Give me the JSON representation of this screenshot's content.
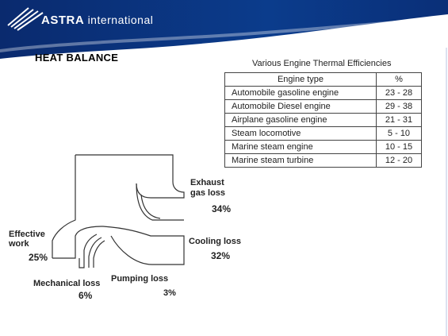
{
  "header": {
    "brand_bold": "ASTRA",
    "brand_light": "international",
    "colors": {
      "band": "#0b2a6b",
      "accent": "#ffffff"
    }
  },
  "page_title": "HEAT BALANCE",
  "table": {
    "title": "Various Engine Thermal Efficiencies",
    "headers": [
      "Engine type",
      "%"
    ],
    "rows": [
      {
        "type": "Automobile gasoline engine",
        "pct": "23 - 28"
      },
      {
        "type": "Automobile Diesel engine",
        "pct": "29 - 38"
      },
      {
        "type": "Airplane gasoline engine",
        "pct": "21 - 31"
      },
      {
        "type": "Steam locomotive",
        "pct": "5 - 10"
      },
      {
        "type": "Marine steam engine",
        "pct": "10 - 15"
      },
      {
        "type": "Marine steam turbine",
        "pct": "12 - 20"
      }
    ]
  },
  "diagram": {
    "exhaust_label_1": "Exhaust",
    "exhaust_label_2": "gas loss",
    "exhaust_value": "34%",
    "cooling_label": "Cooling loss",
    "cooling_value": "32%",
    "effective_label_1": "Effective",
    "effective_label_2": "work",
    "effective_value": "25%",
    "mechanical_label": "Mechanical loss",
    "mechanical_value": "6%",
    "pumping_label": "Pumping loss",
    "pumping_value": "3%"
  }
}
